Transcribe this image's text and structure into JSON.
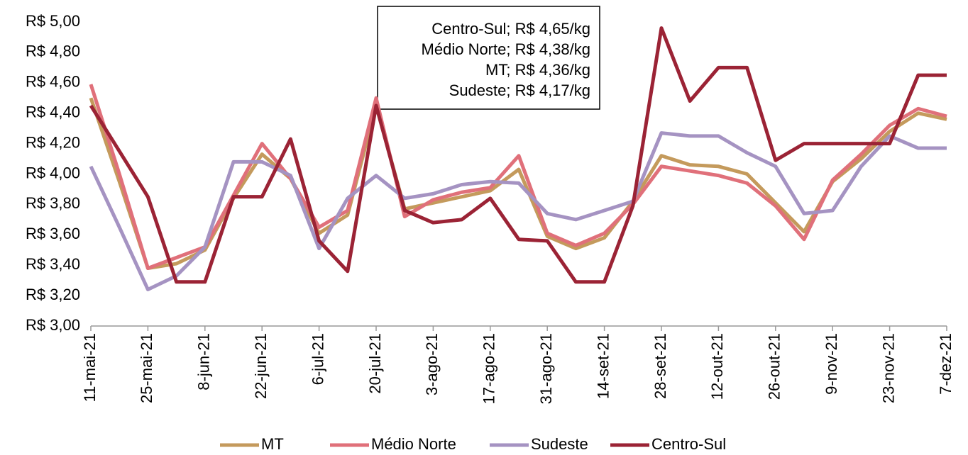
{
  "chart_data": {
    "type": "line",
    "categories": [
      "11-mai-21",
      null,
      "25-mai-21",
      null,
      "8-jun-21",
      null,
      "22-jun-21",
      null,
      "6-jul-21",
      null,
      "20-jul-21",
      null,
      "3-ago-21",
      null,
      "17-ago-21",
      null,
      "31-ago-21",
      null,
      "14-set-21",
      null,
      "28-set-21",
      null,
      "12-out-21",
      null,
      "26-out-21",
      null,
      "9-nov-21",
      null,
      "23-nov-21",
      null,
      "7-dez-21"
    ],
    "series": [
      {
        "name": "MT",
        "color": "#c49a5c",
        "values": [
          4.5,
          3.95,
          3.38,
          3.41,
          3.5,
          3.84,
          4.13,
          3.97,
          3.61,
          3.73,
          4.45,
          3.77,
          3.81,
          3.85,
          3.89,
          4.03,
          3.59,
          3.51,
          3.58,
          3.82,
          4.12,
          4.06,
          4.05,
          4.0,
          3.81,
          3.62,
          3.95,
          4.1,
          4.28,
          4.4,
          4.36
        ]
      },
      {
        "name": "Médio Norte",
        "color": "#e0707a",
        "values": [
          4.59,
          4.0,
          3.38,
          3.45,
          3.52,
          3.86,
          4.2,
          3.97,
          3.65,
          3.76,
          4.5,
          3.72,
          3.83,
          3.88,
          3.91,
          4.12,
          3.61,
          3.53,
          3.61,
          3.8,
          4.05,
          4.02,
          3.99,
          3.94,
          3.79,
          3.57,
          3.96,
          4.13,
          4.32,
          4.43,
          4.38
        ]
      },
      {
        "name": "Sudeste",
        "color": "#a593c2",
        "values": [
          4.05,
          3.65,
          3.24,
          3.33,
          3.52,
          4.08,
          4.08,
          3.99,
          3.51,
          3.84,
          3.99,
          3.84,
          3.87,
          3.93,
          3.95,
          3.94,
          3.74,
          3.7,
          3.76,
          3.82,
          4.27,
          4.25,
          4.25,
          4.14,
          4.05,
          3.74,
          3.76,
          4.05,
          4.25,
          4.17,
          4.17
        ]
      },
      {
        "name": "Centro-Sul",
        "color": "#9b2335",
        "values": [
          4.45,
          4.15,
          3.85,
          3.29,
          3.29,
          3.85,
          3.85,
          4.23,
          3.56,
          3.36,
          4.45,
          3.76,
          3.68,
          3.7,
          3.84,
          3.57,
          3.56,
          3.29,
          3.29,
          3.79,
          4.96,
          4.48,
          4.7,
          4.7,
          4.09,
          4.2,
          4.2,
          4.2,
          4.2,
          4.65,
          4.65
        ]
      }
    ],
    "ylim": [
      3.0,
      5.0
    ],
    "yticks": [
      {
        "value": 3.0,
        "label": "R$ 3,00"
      },
      {
        "value": 3.2,
        "label": "R$ 3,20"
      },
      {
        "value": 3.4,
        "label": "R$ 3,40"
      },
      {
        "value": 3.6,
        "label": "R$ 3,60"
      },
      {
        "value": 3.8,
        "label": "R$ 3,80"
      },
      {
        "value": 4.0,
        "label": "R$ 4,00"
      },
      {
        "value": 4.2,
        "label": "R$ 4,20"
      },
      {
        "value": 4.4,
        "label": "R$ 4,40"
      },
      {
        "value": 4.6,
        "label": "R$ 4,60"
      },
      {
        "value": 4.8,
        "label": "R$ 4,80"
      },
      {
        "value": 5.0,
        "label": "R$ 5,00"
      }
    ],
    "annotation": [
      "Centro-Sul; R$ 4,65/kg",
      "Médio Norte; R$ 4,38/kg",
      "MT; R$ 4,36/kg",
      "Sudeste; R$ 4,17/kg"
    ],
    "legend": "bottom"
  }
}
